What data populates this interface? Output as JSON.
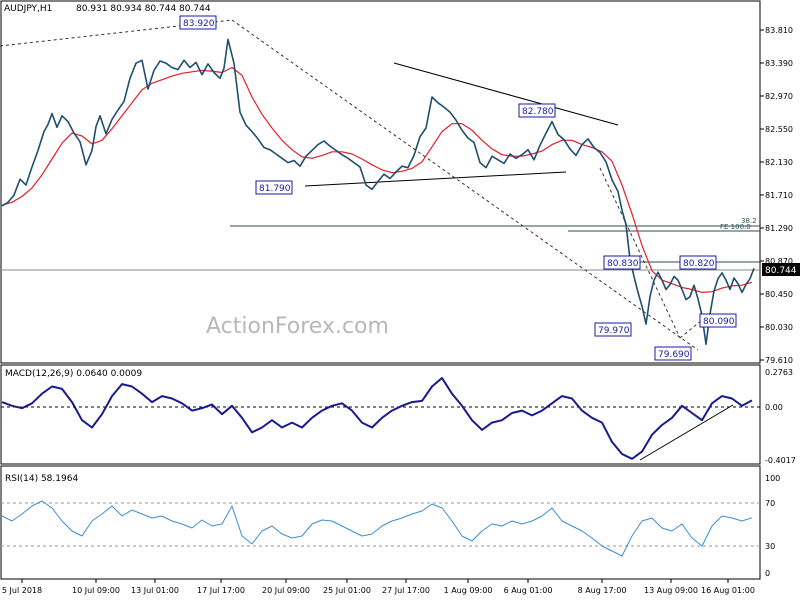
{
  "header": {
    "symbol": "AUDJPY,H1",
    "ohlc": "80.931 80.934 80.744 80.744"
  },
  "watermark": "ActionForex.com",
  "colors": {
    "price": "#1f4e6e",
    "ema": "#e0202a",
    "trendline": "#000000",
    "macd": "#1a1a8c",
    "rsi": "#3a8fd0",
    "label_border": "#1a1aa0",
    "last_price_bg": "#000000"
  },
  "last_price": "80.744",
  "chart_data": [
    {
      "panel": "price",
      "type": "line",
      "x_tick_labels": [
        "5 Jul 2018",
        "10 Jul 09:00",
        "13 Jul 01:00",
        "17 Jul 17:00",
        "20 Jul 09:00",
        "25 Jul 01:00",
        "27 Jul 17:00",
        "1 Aug 09:00",
        "6 Aug 01:00",
        "8 Aug 17:00",
        "13 Aug 09:00",
        "16 Aug 01:00"
      ],
      "y_tick_labels": [
        "83.810",
        "83.390",
        "82.970",
        "82.550",
        "82.130",
        "81.710",
        "81.290",
        "80.870",
        "80.450",
        "80.030",
        "79.610"
      ],
      "ylim": [
        79.5,
        84.05
      ],
      "series": [
        {
          "x": [
            0,
            6,
            12,
            18,
            24,
            30,
            36,
            42,
            46,
            50,
            55,
            60,
            66,
            72,
            78,
            84,
            90,
            94,
            98,
            104,
            110,
            116,
            122,
            128,
            134,
            140,
            146,
            152,
            158,
            164,
            170,
            176,
            182,
            188,
            194,
            200,
            206,
            212,
            218,
            222,
            226,
            232,
            238,
            244,
            250,
            256,
            262,
            268,
            274,
            280,
            286,
            292,
            298,
            304,
            310,
            316,
            322,
            328,
            334,
            340,
            346,
            352,
            358,
            364,
            370,
            376,
            382,
            388,
            394,
            400,
            406,
            412,
            418,
            424,
            430,
            436,
            442,
            448,
            454,
            460,
            466,
            472,
            478,
            484,
            490,
            496,
            502,
            508,
            514,
            520,
            526,
            532,
            538,
            544,
            550,
            556,
            562,
            568,
            574,
            580,
            586,
            592,
            598,
            604,
            610,
            616,
            620,
            624,
            628,
            632,
            636,
            640,
            644,
            648,
            652,
            656,
            660,
            664,
            668,
            672,
            676,
            680,
            684,
            688,
            692,
            696,
            700,
            704,
            708,
            712,
            716,
            720,
            724,
            728,
            732,
            736,
            740,
            744,
            748,
            752
          ],
          "values": [
            81.61,
            81.66,
            81.76,
            81.98,
            81.9,
            82.15,
            82.38,
            82.64,
            82.74,
            82.89,
            82.7,
            82.86,
            82.78,
            82.62,
            82.5,
            82.18,
            82.38,
            82.71,
            82.86,
            82.61,
            82.81,
            82.94,
            83.06,
            83.38,
            83.59,
            83.63,
            83.23,
            83.49,
            83.62,
            83.59,
            83.53,
            83.5,
            83.63,
            83.53,
            83.6,
            83.43,
            83.58,
            83.46,
            83.38,
            83.52,
            83.92,
            83.59,
            82.91,
            82.73,
            82.64,
            82.54,
            82.42,
            82.39,
            82.33,
            82.27,
            82.21,
            82.24,
            82.16,
            82.3,
            82.38,
            82.46,
            82.51,
            82.44,
            82.38,
            82.32,
            82.27,
            82.21,
            82.15,
            81.9,
            81.84,
            81.95,
            82.05,
            81.99,
            82.08,
            82.16,
            82.14,
            82.31,
            82.57,
            82.69,
            83.12,
            83.04,
            82.98,
            82.91,
            82.8,
            82.66,
            82.55,
            82.49,
            82.21,
            82.14,
            82.3,
            82.25,
            82.2,
            82.33,
            82.27,
            82.32,
            82.39,
            82.25,
            82.45,
            82.62,
            82.78,
            82.6,
            82.53,
            82.4,
            82.31,
            82.46,
            82.54,
            82.42,
            82.35,
            82.22,
            81.97,
            81.81,
            81.55,
            81.35,
            80.87,
            80.63,
            80.41,
            80.22,
            79.97,
            80.35,
            80.58,
            80.69,
            80.58,
            80.45,
            80.52,
            80.63,
            80.58,
            80.45,
            80.31,
            80.35,
            80.51,
            80.32,
            80.09,
            79.69,
            80.11,
            80.43,
            80.6,
            80.68,
            80.58,
            80.45,
            80.61,
            80.53,
            80.41,
            80.52,
            80.6,
            80.744
          ]
        },
        {
          "x": [
            0,
            10,
            20,
            30,
            40,
            50,
            60,
            70,
            80,
            90,
            100,
            110,
            120,
            130,
            140,
            150,
            160,
            170,
            180,
            190,
            200,
            210,
            220,
            230,
            240,
            250,
            260,
            270,
            280,
            290,
            300,
            310,
            320,
            330,
            340,
            350,
            360,
            370,
            380,
            390,
            400,
            410,
            420,
            430,
            440,
            450,
            460,
            470,
            480,
            490,
            500,
            510,
            520,
            530,
            540,
            550,
            560,
            570,
            580,
            590,
            600,
            610,
            620,
            630,
            640,
            650,
            660,
            670,
            680,
            690,
            700,
            710,
            720,
            730,
            740,
            750
          ],
          "values": [
            81.62,
            81.66,
            81.74,
            81.86,
            82.04,
            82.26,
            82.48,
            82.62,
            82.58,
            82.47,
            82.52,
            82.68,
            82.86,
            83.04,
            83.22,
            83.31,
            83.36,
            83.41,
            83.45,
            83.47,
            83.49,
            83.48,
            83.46,
            83.53,
            83.42,
            83.12,
            82.88,
            82.69,
            82.52,
            82.39,
            82.29,
            82.27,
            82.31,
            82.36,
            82.36,
            82.33,
            82.26,
            82.18,
            82.11,
            82.07,
            82.09,
            82.13,
            82.22,
            82.43,
            82.64,
            82.75,
            82.75,
            82.66,
            82.52,
            82.4,
            82.32,
            82.3,
            82.3,
            82.33,
            82.37,
            82.46,
            82.52,
            82.52,
            82.46,
            82.42,
            82.36,
            82.23,
            81.9,
            81.5,
            81.06,
            80.71,
            80.58,
            80.53,
            80.48,
            80.45,
            80.41,
            80.42,
            80.47,
            80.5,
            80.51,
            80.55
          ]
        }
      ],
      "annotations": [
        "83.920",
        "81.790",
        "82.780",
        "80.830",
        "80.820",
        "79.970",
        "80.090",
        "79.690",
        "38.2",
        "FE 100.0"
      ]
    },
    {
      "panel": "macd",
      "type": "line",
      "title": "MACD(12,26,9) 0.0640 0.0009",
      "y_tick_labels": [
        "0.2763",
        "0.00",
        "-0.4017"
      ],
      "ylim": [
        -0.43,
        0.3
      ],
      "series": [
        {
          "x": [
            0,
            10,
            20,
            30,
            40,
            50,
            60,
            70,
            80,
            90,
            100,
            110,
            120,
            130,
            140,
            150,
            160,
            170,
            180,
            190,
            200,
            210,
            220,
            230,
            240,
            250,
            260,
            270,
            280,
            290,
            300,
            310,
            320,
            330,
            340,
            350,
            360,
            370,
            380,
            390,
            400,
            410,
            420,
            430,
            440,
            450,
            460,
            470,
            480,
            490,
            500,
            510,
            520,
            530,
            540,
            550,
            560,
            570,
            580,
            590,
            600,
            610,
            620,
            630,
            640,
            650,
            660,
            670,
            680,
            690,
            700,
            710,
            720,
            730,
            740,
            750
          ],
          "values": [
            0.05,
            0.02,
            0.0,
            0.04,
            0.12,
            0.18,
            0.16,
            0.05,
            -0.1,
            -0.16,
            -0.05,
            0.1,
            0.2,
            0.18,
            0.12,
            0.05,
            0.1,
            0.08,
            0.04,
            -0.02,
            0.0,
            0.03,
            -0.05,
            0.02,
            -0.08,
            -0.2,
            -0.16,
            -0.1,
            -0.16,
            -0.12,
            -0.16,
            -0.08,
            -0.02,
            0.02,
            0.04,
            -0.02,
            -0.12,
            -0.16,
            -0.08,
            -0.02,
            0.02,
            0.05,
            0.06,
            0.18,
            0.25,
            0.12,
            0.02,
            -0.1,
            -0.18,
            -0.12,
            -0.1,
            -0.04,
            -0.02,
            -0.06,
            -0.02,
            0.04,
            0.1,
            0.08,
            -0.02,
            -0.08,
            -0.12,
            -0.28,
            -0.38,
            -0.42,
            -0.36,
            -0.22,
            -0.14,
            -0.08,
            0.02,
            -0.04,
            -0.1,
            0.04,
            0.1,
            0.08,
            0.02,
            0.064
          ]
        }
      ]
    },
    {
      "panel": "rsi",
      "type": "line",
      "title": "RSI(14) 58.1964",
      "y_tick_labels": [
        "100",
        "70",
        "30",
        "0"
      ],
      "ylim": [
        0,
        100
      ],
      "series": [
        {
          "x": [
            0,
            10,
            20,
            30,
            40,
            50,
            60,
            70,
            80,
            90,
            100,
            110,
            120,
            130,
            140,
            150,
            160,
            170,
            180,
            190,
            200,
            210,
            220,
            230,
            240,
            250,
            260,
            270,
            280,
            290,
            300,
            310,
            320,
            330,
            340,
            350,
            360,
            370,
            380,
            390,
            400,
            410,
            420,
            430,
            440,
            450,
            460,
            470,
            480,
            490,
            500,
            510,
            520,
            530,
            540,
            550,
            560,
            570,
            580,
            590,
            600,
            610,
            620,
            630,
            640,
            650,
            660,
            670,
            680,
            690,
            700,
            710,
            720,
            730,
            740,
            750
          ],
          "values": [
            60,
            55,
            62,
            70,
            75,
            68,
            55,
            45,
            40,
            55,
            62,
            70,
            60,
            66,
            62,
            58,
            60,
            55,
            52,
            48,
            56,
            50,
            52,
            70,
            40,
            32,
            45,
            50,
            42,
            38,
            40,
            52,
            56,
            55,
            50,
            45,
            40,
            42,
            50,
            55,
            58,
            62,
            65,
            72,
            68,
            55,
            40,
            35,
            45,
            52,
            50,
            55,
            52,
            55,
            60,
            68,
            55,
            50,
            45,
            38,
            30,
            25,
            20,
            40,
            55,
            58,
            48,
            45,
            52,
            38,
            30,
            50,
            60,
            58,
            55,
            58.2
          ]
        }
      ]
    }
  ]
}
